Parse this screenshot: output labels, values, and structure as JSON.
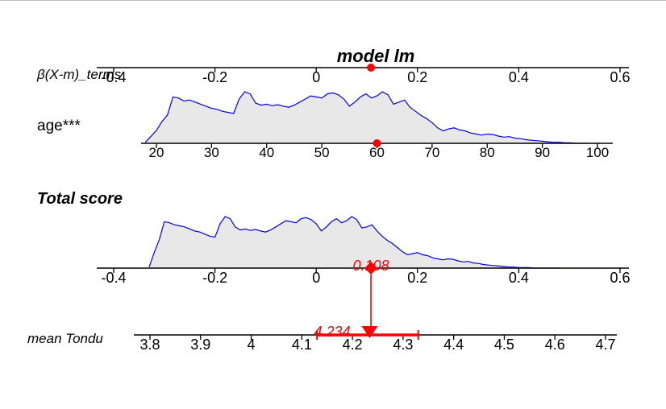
{
  "chart_data": {
    "type": "nomogram",
    "title": "model lm",
    "model_label": "model lm",
    "scales": {
      "beta_terms": {
        "label": "β(X-m)_terms",
        "range": [
          -0.4,
          0.6
        ],
        "ticks": [
          -0.4,
          -0.2,
          0,
          0.2,
          0.4,
          0.6
        ],
        "tick_labels": [
          "-0.4",
          "-0.2",
          "0",
          "0.2",
          "0.4",
          "0.6"
        ]
      },
      "age": {
        "label": "age***",
        "range": [
          20,
          100
        ],
        "ticks": [
          20,
          30,
          40,
          50,
          60,
          70,
          80,
          90,
          100
        ],
        "tick_labels": [
          "20",
          "30",
          "40",
          "50",
          "60",
          "70",
          "80",
          "90",
          "100"
        ],
        "selected_value": 60,
        "beta_at_selected": 0.108
      },
      "total_score": {
        "label": "Total score",
        "range": [
          -0.4,
          0.6
        ],
        "ticks": [
          -0.4,
          -0.2,
          0,
          0.2,
          0.4,
          0.6
        ],
        "tick_labels": [
          "-0.4",
          "-0.2",
          "0",
          "0.2",
          "0.4",
          "0.6"
        ],
        "point_value": 0.108,
        "point_label": "0.108"
      },
      "response": {
        "label": "mean Tondu",
        "range": [
          3.8,
          4.7
        ],
        "ticks": [
          3.8,
          3.9,
          4.0,
          4.1,
          4.2,
          4.3,
          4.4,
          4.5,
          4.6,
          4.7
        ],
        "tick_labels": [
          "3.8",
          "3.9",
          "4",
          "4.1",
          "4.2",
          "4.3",
          "4.4",
          "4.5",
          "4.6",
          "4.7"
        ],
        "predicted": 4.234,
        "predicted_label": "4.234",
        "ci": [
          4.13,
          4.33
        ]
      }
    },
    "age_density": {
      "x": [
        18,
        20,
        21,
        22,
        23,
        24,
        25,
        26,
        27,
        28,
        29,
        30,
        31,
        32,
        33,
        34,
        35,
        36,
        37,
        38,
        39,
        40,
        41,
        42,
        43,
        44,
        45,
        46,
        47,
        48,
        49,
        50,
        51,
        52,
        53,
        54,
        55,
        56,
        57,
        58,
        59,
        60,
        61,
        62,
        63,
        64,
        65,
        66,
        67,
        68,
        69,
        70,
        71,
        72,
        73,
        74,
        75,
        76,
        77,
        78,
        79,
        80,
        81,
        82,
        83,
        84,
        85,
        86,
        87,
        88,
        89,
        90,
        91,
        92,
        93,
        94,
        95,
        96,
        97,
        98
      ],
      "y": [
        0.02,
        0.25,
        0.42,
        0.55,
        0.9,
        0.88,
        0.82,
        0.84,
        0.8,
        0.76,
        0.72,
        0.68,
        0.66,
        0.62,
        0.6,
        0.58,
        0.86,
        1.0,
        0.96,
        0.78,
        0.74,
        0.76,
        0.73,
        0.75,
        0.72,
        0.7,
        0.74,
        0.8,
        0.86,
        0.92,
        0.9,
        0.88,
        0.96,
        0.98,
        0.94,
        0.86,
        0.72,
        0.8,
        0.9,
        0.96,
        0.88,
        0.92,
        1.0,
        0.94,
        0.76,
        0.8,
        0.84,
        0.7,
        0.62,
        0.54,
        0.48,
        0.4,
        0.3,
        0.24,
        0.28,
        0.3,
        0.26,
        0.24,
        0.2,
        0.18,
        0.16,
        0.18,
        0.17,
        0.14,
        0.12,
        0.13,
        0.1,
        0.09,
        0.07,
        0.06,
        0.05,
        0.04,
        0.03,
        0.02,
        0.02,
        0.01,
        0.01,
        0.0,
        0.0,
        0.0
      ]
    },
    "score_density": {
      "x": [
        -0.33,
        -0.32,
        -0.31,
        -0.3,
        -0.29,
        -0.28,
        -0.27,
        -0.26,
        -0.25,
        -0.24,
        -0.23,
        -0.22,
        -0.21,
        -0.2,
        -0.19,
        -0.18,
        -0.17,
        -0.16,
        -0.15,
        -0.14,
        -0.13,
        -0.12,
        -0.11,
        -0.1,
        -0.09,
        -0.08,
        -0.07,
        -0.06,
        -0.05,
        -0.04,
        -0.03,
        -0.02,
        -0.01,
        0.0,
        0.01,
        0.02,
        0.03,
        0.04,
        0.05,
        0.06,
        0.07,
        0.08,
        0.09,
        0.1,
        0.11,
        0.12,
        0.13,
        0.14,
        0.15,
        0.16,
        0.17,
        0.18,
        0.19,
        0.2,
        0.21,
        0.22,
        0.23,
        0.24,
        0.25,
        0.26,
        0.27,
        0.28,
        0.29,
        0.3,
        0.31,
        0.32,
        0.33,
        0.34,
        0.35,
        0.36,
        0.37,
        0.38,
        0.39,
        0.4,
        0.41,
        0.42,
        0.43,
        0.44,
        0.45,
        0.46,
        0.47,
        0.48
      ],
      "y": [
        0.02,
        0.3,
        0.55,
        0.9,
        0.88,
        0.84,
        0.82,
        0.8,
        0.76,
        0.72,
        0.7,
        0.66,
        0.62,
        0.6,
        0.86,
        1.0,
        0.96,
        0.8,
        0.74,
        0.76,
        0.73,
        0.75,
        0.72,
        0.7,
        0.74,
        0.8,
        0.86,
        0.92,
        0.9,
        0.88,
        0.96,
        0.98,
        0.94,
        0.86,
        0.72,
        0.8,
        0.9,
        0.96,
        0.88,
        0.92,
        1.0,
        0.94,
        0.78,
        0.8,
        0.84,
        0.72,
        0.62,
        0.54,
        0.48,
        0.4,
        0.32,
        0.26,
        0.28,
        0.3,
        0.26,
        0.24,
        0.2,
        0.18,
        0.16,
        0.18,
        0.17,
        0.14,
        0.12,
        0.13,
        0.1,
        0.09,
        0.07,
        0.06,
        0.05,
        0.04,
        0.03,
        0.02,
        0.02,
        0.01,
        0.01,
        0.01,
        0.0,
        0.0,
        0.0,
        0.0,
        0.0,
        0.0
      ]
    },
    "colors": {
      "axis": "#000000",
      "density_line": "#0000ff",
      "density_fill": "#e8e8e8",
      "highlight": "#ff0000",
      "frame_line": "#bdbdbd"
    }
  }
}
